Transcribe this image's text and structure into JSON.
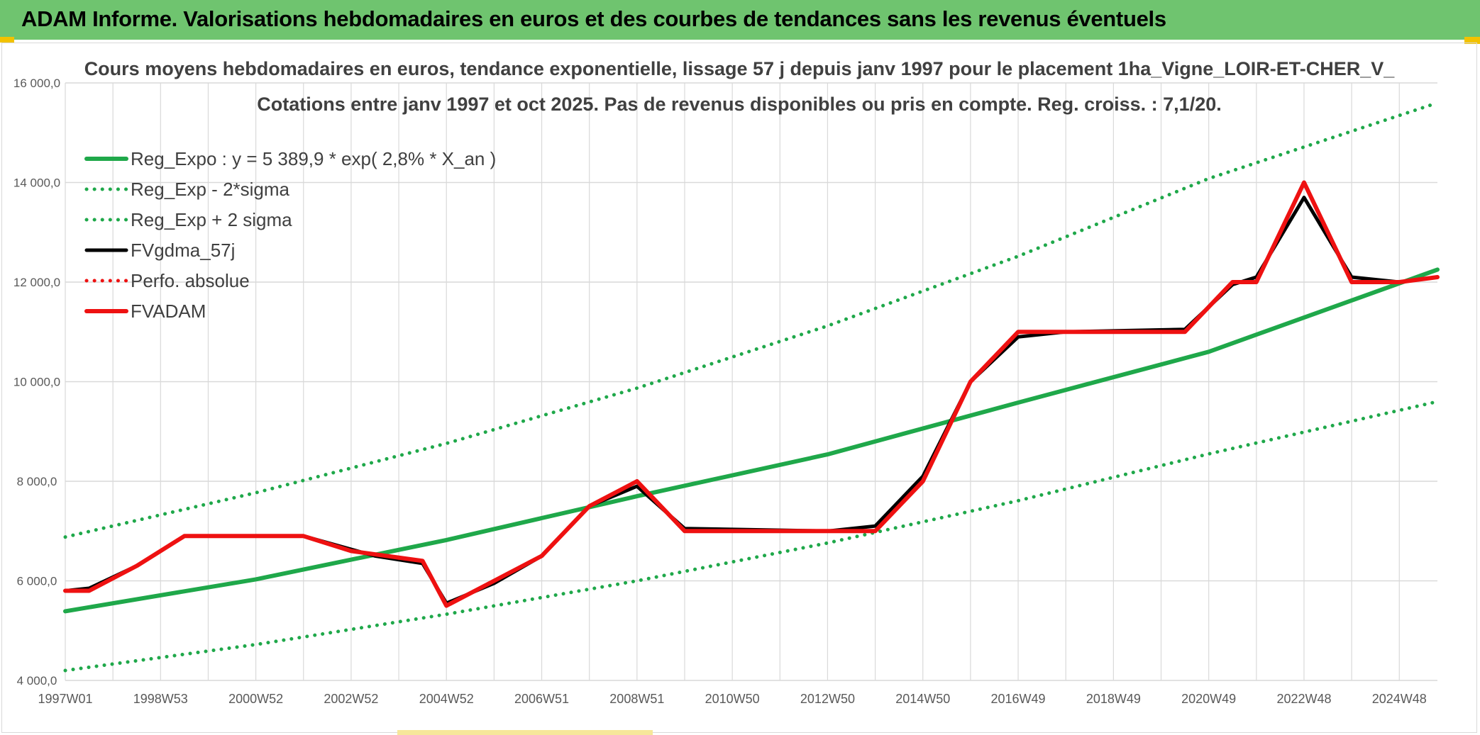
{
  "header": {
    "title": "ADAM Informe. Valorisations hebdomadaires en euros et des courbes de tendances sans les revenus éventuels"
  },
  "colors": {
    "banner": "#6fc46f",
    "reg_expo": "#1fa84a",
    "band": "#1fa84a",
    "fvgdma": "#000000",
    "fvadam": "#ee1111",
    "perfo": "#ee1111",
    "grid": "#d9d9d9"
  },
  "chart_data": {
    "type": "line",
    "title": [
      "Cours moyens hebdomadaires en euros, tendance exponentielle, lissage 57 j depuis janv 1997 pour le placement 1ha_Vigne_LOIR-ET-CHER_V_",
      "Cotations entre janv 1997 et oct 2025. Pas de revenus disponibles ou pris en compte. Reg. croiss. : 7,1/20."
    ],
    "ylim": [
      4000,
      16000
    ],
    "xlim": [
      1997.0,
      2025.8
    ],
    "y_ticks": [
      {
        "value": 4000,
        "label": "4 000,0"
      },
      {
        "value": 6000,
        "label": "6 000,0"
      },
      {
        "value": 8000,
        "label": "8 000,0"
      },
      {
        "value": 10000,
        "label": "10 000,0"
      },
      {
        "value": 12000,
        "label": "12 000,0"
      },
      {
        "value": 14000,
        "label": "14 000,0"
      },
      {
        "value": 16000,
        "label": "16 000,0"
      }
    ],
    "x_ticks": [
      {
        "value": 1997.0,
        "label": "1997W01"
      },
      {
        "value": 1999.0,
        "label": "1998W53"
      },
      {
        "value": 2001.0,
        "label": "2000W52"
      },
      {
        "value": 2003.0,
        "label": "2002W52"
      },
      {
        "value": 2005.0,
        "label": "2004W52"
      },
      {
        "value": 2007.0,
        "label": "2006W51"
      },
      {
        "value": 2009.0,
        "label": "2008W51"
      },
      {
        "value": 2011.0,
        "label": "2010W50"
      },
      {
        "value": 2013.0,
        "label": "2012W50"
      },
      {
        "value": 2015.0,
        "label": "2014W50"
      },
      {
        "value": 2017.0,
        "label": "2016W49"
      },
      {
        "value": 2019.0,
        "label": "2018W49"
      },
      {
        "value": 2021.0,
        "label": "2020W49"
      },
      {
        "value": 2023.0,
        "label": "2022W48"
      },
      {
        "value": 2025.0,
        "label": "2024W48"
      }
    ],
    "series": [
      {
        "name": "Reg_Expo : y = 5 389,9 * exp( 2,8% *  X_an )",
        "style": "solid-thick",
        "color": "#1fa84a",
        "x": [
          1997.0,
          2001.0,
          2005.0,
          2009.0,
          2013.0,
          2017.0,
          2021.0,
          2025.8
        ],
        "y": [
          5390,
          6030,
          6820,
          7700,
          8540,
          9580,
          10600,
          12250
        ]
      },
      {
        "name": "Reg_Exp - 2*sigma",
        "style": "dotted",
        "color": "#1fa84a",
        "x": [
          1997.0,
          2001.0,
          2005.0,
          2009.0,
          2013.0,
          2017.0,
          2021.0,
          2025.8
        ],
        "y": [
          4200,
          4720,
          5330,
          6000,
          6760,
          7610,
          8550,
          9600
        ]
      },
      {
        "name": "Reg_Exp + 2 sigma",
        "style": "dotted",
        "color": "#1fa84a",
        "x": [
          1997.0,
          2001.0,
          2005.0,
          2009.0,
          2013.0,
          2017.0,
          2021.0,
          2025.8
        ],
        "y": [
          6880,
          7770,
          8760,
          9870,
          11120,
          12520,
          14080,
          15600
        ]
      },
      {
        "name": "FVgdma_57j",
        "style": "solid",
        "color": "#000000",
        "x": [
          1997.0,
          1997.5,
          1998.5,
          1999.5,
          2000.0,
          2002.0,
          2003.5,
          2004.5,
          2005.0,
          2006.0,
          2007.0,
          2008.0,
          2009.0,
          2010.0,
          2013.0,
          2014.0,
          2015.0,
          2016.0,
          2017.0,
          2018.0,
          2020.5,
          2021.5,
          2022.0,
          2023.0,
          2024.0,
          2025.0,
          2025.8
        ],
        "y": [
          5800,
          5850,
          6300,
          6900,
          6900,
          6900,
          6500,
          6350,
          5550,
          5950,
          6500,
          7500,
          7900,
          7050,
          7000,
          7100,
          8100,
          10000,
          10900,
          11000,
          11050,
          11950,
          12100,
          13700,
          12100,
          12000,
          12100
        ]
      },
      {
        "name": "Perfo. absolue",
        "style": "dotted",
        "color": "#ee1111",
        "x": [],
        "y": []
      },
      {
        "name": "FVADAM",
        "style": "solid-thick",
        "color": "#ee1111",
        "x": [
          1997.0,
          1997.5,
          1998.5,
          1999.5,
          2000.0,
          2002.0,
          2003.0,
          2004.5,
          2005.0,
          2006.0,
          2007.0,
          2008.0,
          2009.0,
          2010.0,
          2013.0,
          2014.0,
          2015.0,
          2016.0,
          2017.0,
          2018.0,
          2020.5,
          2021.5,
          2022.0,
          2023.0,
          2024.0,
          2025.0,
          2025.8
        ],
        "y": [
          5800,
          5800,
          6300,
          6900,
          6900,
          6900,
          6600,
          6400,
          5500,
          6000,
          6500,
          7500,
          8000,
          7000,
          7000,
          7000,
          8000,
          10000,
          11000,
          11000,
          11000,
          12000,
          12000,
          14000,
          12000,
          12000,
          12100
        ]
      }
    ]
  }
}
